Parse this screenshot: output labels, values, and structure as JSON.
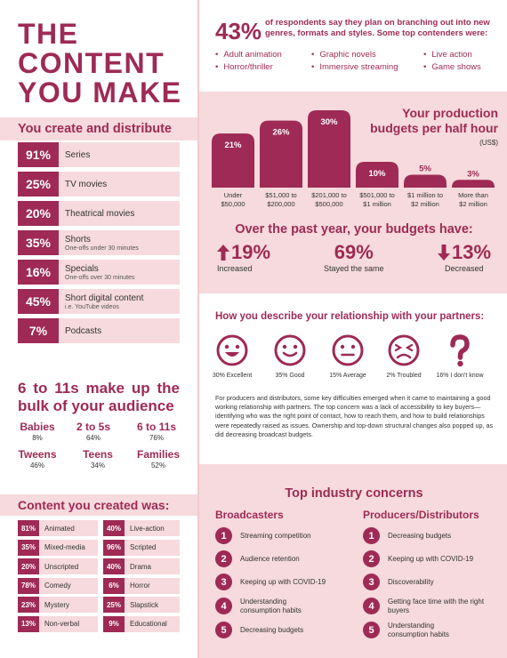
{
  "title": "THE CONTENT YOU MAKE",
  "distribute": {
    "heading": "You create and distribute",
    "items": [
      {
        "pct": "91%",
        "label": "Series",
        "sub": ""
      },
      {
        "pct": "25%",
        "label": "TV movies",
        "sub": ""
      },
      {
        "pct": "20%",
        "label": "Theatrical movies",
        "sub": ""
      },
      {
        "pct": "35%",
        "label": "Shorts",
        "sub": "One-offs under 30 minutes"
      },
      {
        "pct": "16%",
        "label": "Specials",
        "sub": "One-offs over 30 minutes"
      },
      {
        "pct": "45%",
        "label": "Short digital content",
        "sub": "i.e. YouTube videos"
      },
      {
        "pct": "7%",
        "label": "Podcasts",
        "sub": ""
      }
    ]
  },
  "audience": {
    "heading": "6 to 11s make up the bulk of your audience",
    "groups": [
      {
        "name": "Babies",
        "value": "8%"
      },
      {
        "name": "2 to 5s",
        "value": "64%"
      },
      {
        "name": "6 to 11s",
        "value": "76%"
      },
      {
        "name": "Tweens",
        "value": "46%"
      },
      {
        "name": "Teens",
        "value": "34%"
      },
      {
        "name": "Families",
        "value": "52%"
      }
    ]
  },
  "content_created": {
    "heading": "Content you created was:",
    "left": [
      {
        "pct": "81%",
        "label": "Animated"
      },
      {
        "pct": "35%",
        "label": "Mixed-media"
      },
      {
        "pct": "20%",
        "label": "Unscripted"
      },
      {
        "pct": "78%",
        "label": "Comedy"
      },
      {
        "pct": "23%",
        "label": "Mystery"
      },
      {
        "pct": "13%",
        "label": "Non-verbal"
      }
    ],
    "right": [
      {
        "pct": "40%",
        "label": "Live-action"
      },
      {
        "pct": "96%",
        "label": "Scripted"
      },
      {
        "pct": "40%",
        "label": "Drama"
      },
      {
        "pct": "6%",
        "label": "Horror"
      },
      {
        "pct": "25%",
        "label": "Slapstick"
      },
      {
        "pct": "9%",
        "label": "Educational"
      }
    ]
  },
  "branching": {
    "pct": "43%",
    "text": "of respondents say they plan on branching out into new genres, formats and styles. Some top contenders were:",
    "genres": [
      "Adult animation",
      "Graphic novels",
      "Live action",
      "Horror/thriller",
      "Immersive streaming",
      "Game shows"
    ]
  },
  "budgets": {
    "title_line1": "Your production",
    "title_line2": "budgets per half hour",
    "unit": "(US$)"
  },
  "chart_data": {
    "type": "bar",
    "title": "Your production budgets per half hour",
    "unit": "(US$)",
    "categories": [
      "Under $50,000",
      "$51,000 to $200,000",
      "$201,000 to $500,000",
      "$501,000 to $1 million",
      "$1 million to $2 million",
      "More than $2 million"
    ],
    "category_lines": [
      [
        "Under",
        "$50,000"
      ],
      [
        "$51,000 to",
        "$200,000"
      ],
      [
        "$201,000 to",
        "$500,000"
      ],
      [
        "$501,000 to",
        "$1 million"
      ],
      [
        "$1 million to",
        "$2 million"
      ],
      [
        "More than",
        "$2 million"
      ]
    ],
    "values": [
      21,
      26,
      30,
      10,
      5,
      3
    ],
    "value_labels": [
      "21%",
      "26%",
      "30%",
      "10%",
      "5%",
      "3%"
    ],
    "ylim": [
      0,
      30
    ],
    "bar_color": "#9e2a55"
  },
  "past_year": {
    "heading": "Over the past year, your budgets have:",
    "items": [
      {
        "value": "19%",
        "label": "Increased",
        "direction": "up"
      },
      {
        "value": "69%",
        "label": "Stayed the same",
        "direction": "none"
      },
      {
        "value": "13%",
        "label": "Decreased",
        "direction": "down"
      }
    ]
  },
  "relationship": {
    "heading": "How you describe your relationship with your partners:",
    "faces": [
      {
        "label": "30% Excellent",
        "icon": "excellent-face-icon"
      },
      {
        "label": "35% Good",
        "icon": "good-face-icon"
      },
      {
        "label": "15% Average",
        "icon": "average-face-icon"
      },
      {
        "label": "2% Troubled",
        "icon": "troubled-face-icon"
      },
      {
        "label": "16% I don't know",
        "icon": "question-mark-icon"
      }
    ],
    "text": "For producers and distributors, some key difficulties emerged when it came to maintaining a good working relationship with partners. The top concern was a lack of accessibility to key buyers—identifying who was the right point of contact, how to reach them, and how to build relationships were repeatedly raised as issues. Ownership and top-down structural changes also popped up, as did decreasing broadcast budgets."
  },
  "concerns": {
    "heading": "Top industry concerns",
    "broadcasters": {
      "heading": "Broadcasters",
      "items": [
        "Streaming competition",
        "Audience retention",
        "Keeping up with COVID-19",
        "Understanding consumption habits",
        "Decreasing budgets"
      ]
    },
    "producers": {
      "heading": "Producers/Distributors",
      "items": [
        "Decreasing budgets",
        "Keeping up with COVID-19",
        "Discoverability",
        "Getting face time with the right buyers",
        "Understanding consumption habits"
      ]
    }
  },
  "colors": {
    "accent": "#9e2a55",
    "panel": "#f6dadd"
  }
}
